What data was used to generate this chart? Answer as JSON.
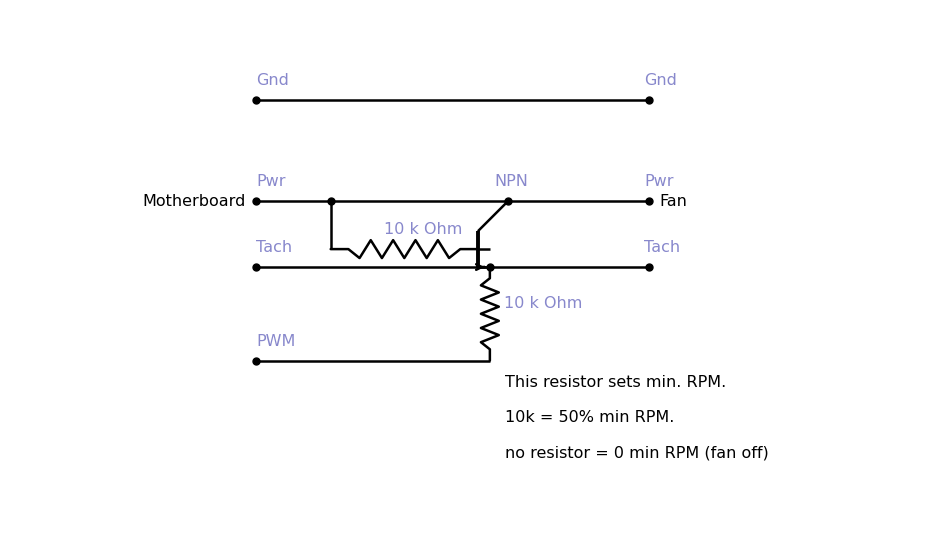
{
  "bg_color": "#ffffff",
  "label_color": "#8888cc",
  "line_color": "#000000",
  "text_color": "#000000",
  "figsize": [
    9.29,
    5.39
  ],
  "dpi": 100,
  "labels": {
    "motherboard": "Motherboard",
    "fan": "Fan",
    "gnd_left": "Gnd",
    "gnd_right": "Gnd",
    "pwr_left": "Pwr",
    "pwr_right": "Pwr",
    "tach_left": "Tach",
    "tach_right": "Tach",
    "pwm_left": "PWM",
    "npn": "NPN",
    "r1_label": "10 k Ohm",
    "r2_label": "10 k Ohm",
    "note_line1": "This resistor sets min. RPM.",
    "note_line2": "10k = 50% min RPM.",
    "note_line3": "no resistor = 0 min RPM (fan off)"
  }
}
